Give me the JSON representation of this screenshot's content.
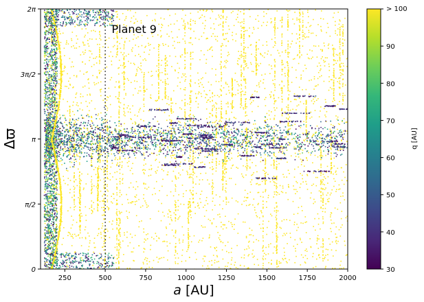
{
  "chart_data": {
    "type": "scatter",
    "xlabel_var": "a",
    "xlabel_unit": "[AU]",
    "ylabel": "Δϖ",
    "xlim": [
      100,
      2000
    ],
    "ylim": [
      0,
      6.2832
    ],
    "x_ticks": [
      250,
      500,
      750,
      1000,
      1250,
      1500,
      1750,
      2000
    ],
    "x_tick_labels": [
      "250",
      "500",
      "750",
      "1000",
      "1250",
      "1500",
      "1750",
      "2000"
    ],
    "y_ticks": [
      0,
      1.5708,
      3.1416,
      4.7124,
      6.2832
    ],
    "y_tick_labels": [
      "0",
      "π/2",
      "π",
      "3π/2",
      "2π"
    ],
    "annotation": {
      "text": "Planet 9",
      "x": 540,
      "y": 5.7
    },
    "reference_lines": [
      {
        "x": 500,
        "style": "dotted",
        "color": "#000000"
      }
    ],
    "colorbar": {
      "label": "q [AU]",
      "min": 30,
      "max": 100,
      "ticks": [
        30,
        40,
        50,
        60,
        70,
        80,
        90
      ],
      "tick_labels": [
        "30",
        "40",
        "50",
        "60",
        "70",
        "80",
        "90"
      ],
      "top_label": "> 100",
      "colormap": "viridis",
      "colors": [
        "#440154",
        "#482878",
        "#3e4989",
        "#31688e",
        "#26828e",
        "#1f9e89",
        "#35b779",
        "#6ece58",
        "#b5de2b",
        "#fde725"
      ]
    },
    "grid": false,
    "legend": "none"
  }
}
